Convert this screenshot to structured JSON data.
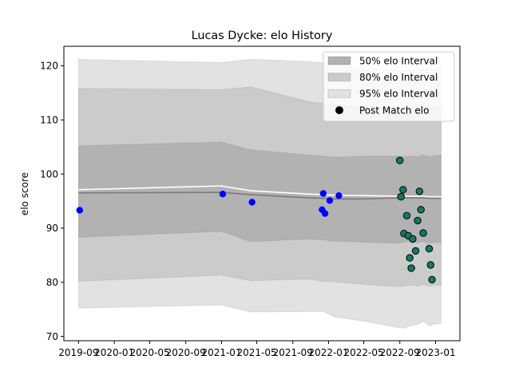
{
  "chart_data": {
    "type": "line",
    "title": "Lucas Dycke: elo History",
    "xlabel": "",
    "ylabel": "elo score",
    "xlim": [
      "2019-07-13",
      "2023-03-25"
    ],
    "ylim": [
      69.2,
      123.6
    ],
    "x_tick_labels": [
      "2019-09",
      "2020-01",
      "2020-05",
      "2020-09",
      "2021-01",
      "2021-05",
      "2021-09",
      "2022-01",
      "2022-05",
      "2022-09",
      "2023-01"
    ],
    "y_ticks": [
      70,
      80,
      90,
      100,
      110,
      120
    ],
    "grid": false,
    "legend_position": "top-right",
    "legend": [
      {
        "label": "50% elo Interval",
        "kind": "patch",
        "color": "#b2b2b2"
      },
      {
        "label": "80% elo Interval",
        "kind": "patch",
        "color": "#cbcbcb"
      },
      {
        "label": "95% elo Interval",
        "kind": "patch",
        "color": "#e2e2e2"
      },
      {
        "label": "Post Match elo",
        "kind": "marker",
        "color": "#000000"
      }
    ],
    "band_x": [
      "2019-09-01",
      "2020-12-31",
      "2021-04-10",
      "2021-10-25",
      "2021-12-14",
      "2022-01-20",
      "2022-05-01",
      "2022-08-30",
      "2022-09-15",
      "2022-10-10",
      "2022-10-31",
      "2022-11-20",
      "2022-12-10",
      "2023-01-01",
      "2023-01-20"
    ],
    "series": [
      {
        "role": "ci95_lower",
        "values": [
          75.2,
          75.8,
          74.5,
          74.6,
          74.6,
          73.6,
          72.8,
          71.6,
          71.5,
          72.0,
          72.2,
          72.8,
          72.0,
          72.3,
          72.4
        ]
      },
      {
        "role": "ci95_upper",
        "values": [
          121.2,
          120.6,
          121.2,
          120.8,
          120.5,
          120.3,
          119.5,
          119.2,
          119.3,
          119.3,
          119.4,
          119.3,
          119.6,
          119.6,
          119.8
        ]
      },
      {
        "role": "ci80_lower",
        "values": [
          80.2,
          81.3,
          80.3,
          80.6,
          80.2,
          80.1,
          79.6,
          79.2,
          79.3,
          79.5,
          79.3,
          79.6,
          79.3,
          79.5,
          79.4
        ]
      },
      {
        "role": "ci80_upper",
        "values": [
          115.8,
          115.6,
          116.1,
          113.4,
          113.0,
          112.8,
          112.4,
          112.3,
          112.1,
          112.2,
          112.1,
          112.3,
          112.0,
          112.2,
          112.3
        ]
      },
      {
        "role": "ci50_lower",
        "values": [
          88.3,
          89.4,
          87.5,
          88.0,
          87.8,
          87.6,
          87.4,
          87.2,
          87.4,
          87.6,
          87.3,
          87.5,
          87.2,
          87.4,
          87.3
        ]
      },
      {
        "role": "ci50_upper",
        "values": [
          105.2,
          105.9,
          104.5,
          103.5,
          103.3,
          103.1,
          103.3,
          103.3,
          103.2,
          103.3,
          103.2,
          103.5,
          103.2,
          103.4,
          103.5
        ]
      },
      {
        "role": "median",
        "values": [
          96.5,
          96.6,
          96.2,
          95.6,
          95.5,
          95.4,
          95.4,
          95.6,
          95.6,
          95.6,
          95.6,
          95.6,
          95.5,
          95.5,
          95.5
        ]
      },
      {
        "role": "mean",
        "values": [
          97.1,
          97.8,
          96.9,
          96.3,
          96.2,
          96.1,
          96.0,
          95.9,
          95.9,
          95.9,
          95.9,
          95.9,
          95.8,
          95.8,
          95.8
        ]
      }
    ],
    "points_blue": {
      "color": "#0000ff",
      "points": [
        {
          "x": "2019-09-05",
          "y": 93.3
        },
        {
          "x": "2021-01-05",
          "y": 96.3
        },
        {
          "x": "2021-04-15",
          "y": 94.8
        },
        {
          "x": "2021-12-10",
          "y": 93.4
        },
        {
          "x": "2021-12-14",
          "y": 96.4
        },
        {
          "x": "2021-12-20",
          "y": 92.7
        },
        {
          "x": "2022-01-05",
          "y": 95.1
        },
        {
          "x": "2022-02-05",
          "y": 96.0
        }
      ]
    },
    "points_green": {
      "color": "#137a63",
      "edge": "#000000",
      "points": [
        {
          "x": "2022-09-01",
          "y": 102.5
        },
        {
          "x": "2022-09-05",
          "y": 95.8
        },
        {
          "x": "2022-09-12",
          "y": 97.1
        },
        {
          "x": "2022-09-15",
          "y": 89.0
        },
        {
          "x": "2022-09-25",
          "y": 92.3
        },
        {
          "x": "2022-09-30",
          "y": 88.6
        },
        {
          "x": "2022-10-05",
          "y": 84.5
        },
        {
          "x": "2022-10-10",
          "y": 82.6
        },
        {
          "x": "2022-10-15",
          "y": 88.0
        },
        {
          "x": "2022-10-25",
          "y": 85.8
        },
        {
          "x": "2022-11-01",
          "y": 91.4
        },
        {
          "x": "2022-11-07",
          "y": 96.8
        },
        {
          "x": "2022-11-12",
          "y": 93.4
        },
        {
          "x": "2022-11-20",
          "y": 89.1
        },
        {
          "x": "2022-12-10",
          "y": 86.2
        },
        {
          "x": "2022-12-15",
          "y": 83.2
        },
        {
          "x": "2022-12-20",
          "y": 80.5
        }
      ]
    }
  }
}
